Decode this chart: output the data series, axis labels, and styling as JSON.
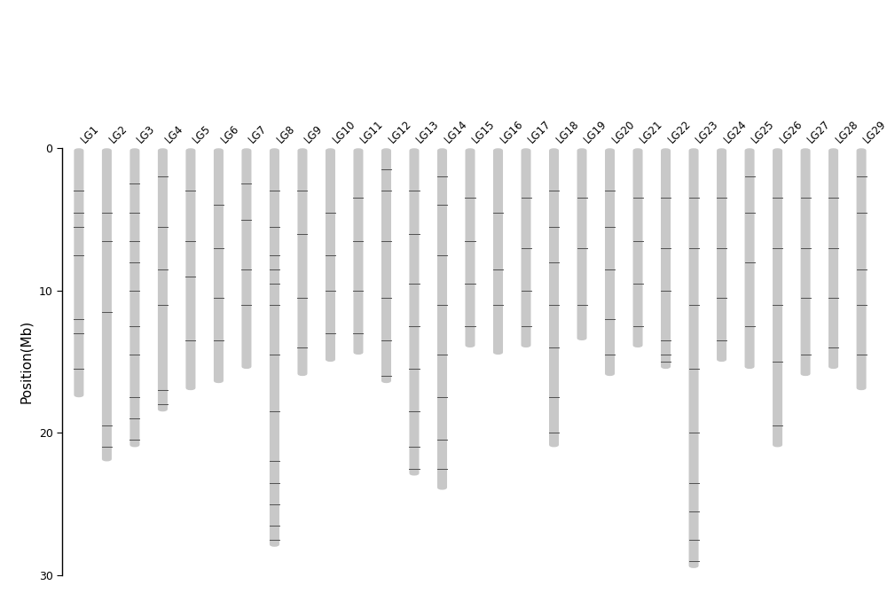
{
  "linkage_groups": [
    "LG1",
    "LG2",
    "LG3",
    "LG4",
    "LG5",
    "LG6",
    "LG7",
    "LG8",
    "LG9",
    "LG10",
    "LG11",
    "LG12",
    "LG13",
    "LG14",
    "LG15",
    "LG16",
    "LG17",
    "LG18",
    "LG19",
    "LG20",
    "LG21",
    "LG22",
    "LG23",
    "LG24",
    "LG25",
    "LG26",
    "LG27",
    "LG28",
    "LG29"
  ],
  "chr_lengths": [
    17.5,
    22.0,
    21.0,
    18.5,
    17.0,
    16.5,
    15.5,
    28.0,
    16.0,
    15.0,
    14.5,
    16.5,
    23.0,
    24.0,
    14.0,
    14.5,
    14.0,
    21.0,
    13.5,
    16.0,
    14.0,
    15.5,
    29.5,
    15.0,
    15.5,
    21.0,
    16.0,
    15.5,
    17.0
  ],
  "markers": {
    "LG1": [
      3.0,
      4.5,
      5.5,
      7.5,
      12.0,
      13.0,
      15.5
    ],
    "LG2": [
      4.5,
      6.5,
      11.5,
      19.5,
      21.0
    ],
    "LG3": [
      2.5,
      4.5,
      6.5,
      8.0,
      10.0,
      12.5,
      14.5,
      17.5,
      19.0,
      20.5
    ],
    "LG4": [
      2.0,
      5.5,
      8.5,
      11.0,
      17.0,
      18.0
    ],
    "LG5": [
      3.0,
      6.5,
      9.0,
      13.5
    ],
    "LG6": [
      4.0,
      7.0,
      10.5,
      13.5
    ],
    "LG7": [
      2.5,
      5.0,
      8.5,
      11.0
    ],
    "LG8": [
      3.0,
      5.5,
      7.5,
      8.5,
      9.5,
      11.0,
      14.5,
      18.5,
      22.0,
      23.5,
      25.0,
      26.5,
      27.5
    ],
    "LG9": [
      3.0,
      6.0,
      10.5,
      14.0
    ],
    "LG10": [
      4.5,
      7.5,
      10.0,
      13.0
    ],
    "LG11": [
      3.5,
      6.5,
      10.0,
      13.0
    ],
    "LG12": [
      1.5,
      3.0,
      6.5,
      10.5,
      13.5,
      16.0
    ],
    "LG13": [
      3.0,
      6.0,
      9.5,
      12.5,
      15.5,
      18.5,
      21.0,
      22.5
    ],
    "LG14": [
      2.0,
      4.0,
      7.5,
      11.0,
      14.5,
      17.5,
      20.5,
      22.5
    ],
    "LG15": [
      3.5,
      6.5,
      9.5,
      12.5
    ],
    "LG16": [
      4.5,
      8.5,
      11.0
    ],
    "LG17": [
      3.5,
      7.0,
      10.0,
      12.5
    ],
    "LG18": [
      3.0,
      5.5,
      8.0,
      11.0,
      14.0,
      17.5,
      20.0
    ],
    "LG19": [
      3.5,
      7.0,
      11.0
    ],
    "LG20": [
      3.0,
      5.5,
      8.5,
      12.0,
      14.5
    ],
    "LG21": [
      3.5,
      6.5,
      9.5,
      12.5
    ],
    "LG22": [
      3.5,
      7.0,
      10.0,
      13.5,
      14.5,
      15.0
    ],
    "LG23": [
      3.5,
      7.0,
      11.0,
      15.5,
      20.0,
      23.5,
      25.5,
      27.5,
      29.0
    ],
    "LG24": [
      3.5,
      7.0,
      10.5,
      13.5
    ],
    "LG25": [
      2.0,
      4.5,
      8.0,
      12.5
    ],
    "LG26": [
      3.5,
      7.0,
      11.0,
      15.0,
      19.5
    ],
    "LG27": [
      3.5,
      7.0,
      10.5,
      14.5
    ],
    "LG28": [
      3.5,
      7.0,
      10.5,
      14.0
    ],
    "LG29": [
      2.0,
      4.5,
      8.5,
      11.0,
      14.5
    ]
  },
  "chr_color": "#c8c8c8",
  "marker_color": "#505050",
  "bar_width": 0.35,
  "ylabel": "Position(Mb)",
  "ylim_max": 30,
  "background_color": "#ffffff",
  "label_fontsize": 8.5,
  "ylabel_fontsize": 11,
  "tick_fontsize": 9
}
